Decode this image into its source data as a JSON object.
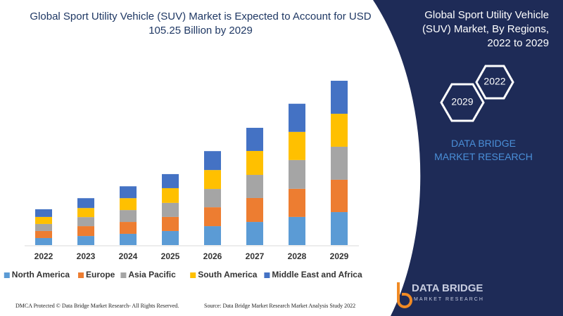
{
  "chart_data": {
    "type": "bar",
    "stacked": true,
    "title": "Global Sport Utility Vehicle (SUV) Market is Expected to Account for USD 105.25 Billion by 2029",
    "categories": [
      "2022",
      "2023",
      "2024",
      "2025",
      "2026",
      "2027",
      "2028",
      "2029"
    ],
    "series": [
      {
        "name": "North America",
        "color": "#5b9bd5",
        "values": [
          4.5,
          5.8,
          7.2,
          9,
          12.1,
          14.8,
          18,
          21.1
        ]
      },
      {
        "name": "Europe",
        "color": "#ed7d31",
        "values": [
          4.5,
          6.3,
          7.6,
          9,
          12.1,
          15.3,
          18,
          20.7
        ]
      },
      {
        "name": "Asia Pacific",
        "color": "#a5a5a5",
        "values": [
          4.5,
          5.8,
          7.6,
          9,
          11.7,
          14.8,
          18.4,
          21.1
        ]
      },
      {
        "name": "South America",
        "color": "#ffc000",
        "values": [
          4.5,
          5.8,
          7.6,
          9.4,
          12.1,
          15.3,
          18,
          21.1
        ]
      },
      {
        "name": "Middle East and Africa",
        "color": "#4472c4",
        "values": [
          4.9,
          6.3,
          7.6,
          9,
          12.1,
          14.8,
          18,
          21.1
        ]
      }
    ],
    "legend": "bottom"
  },
  "panel": {
    "title": "Global Sport Utility Vehicle (SUV) Market, By Regions, 2022 to 2029",
    "hexagons": [
      "2022",
      "2029"
    ],
    "brand": "DATA BRIDGE MARKET RESEARCH"
  },
  "logo": {
    "name": "DATA BRIDGE",
    "tagline": "MARKET RESEARCH"
  },
  "footer": {
    "left": "DMCA Protected © Data Bridge Market Research- All Rights Reserved.",
    "right": "Source: Data Bridge Market Research Market Analysis Study 2022"
  }
}
